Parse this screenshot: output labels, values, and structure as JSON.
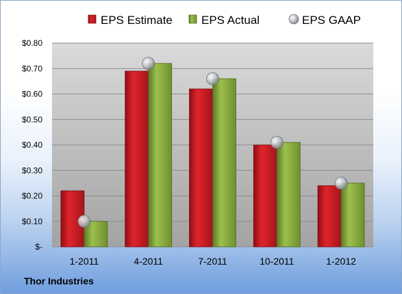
{
  "company": "Thor Industries",
  "colors": {
    "estimate": "#c0181f",
    "actual": "#86a93e",
    "gaap": "#b9bcc2",
    "plot_top": "#d9d9d9",
    "plot_bottom": "#a6a6a6"
  },
  "chart_data": {
    "type": "bar",
    "categories": [
      "1-2011",
      "4-2011",
      "7-2011",
      "10-2011",
      "1-2012"
    ],
    "series": [
      {
        "name": "EPS Estimate",
        "kind": "bar",
        "values": [
          0.22,
          0.69,
          0.62,
          0.4,
          0.24
        ]
      },
      {
        "name": "EPS Actual",
        "kind": "bar",
        "values": [
          0.1,
          0.72,
          0.66,
          0.41,
          0.25
        ]
      },
      {
        "name": "EPS GAAP",
        "kind": "marker",
        "values": [
          0.1,
          0.72,
          0.66,
          0.41,
          0.25
        ]
      }
    ],
    "ylim": [
      0,
      0.8
    ],
    "yticks": [
      0,
      0.1,
      0.2,
      0.3,
      0.4,
      0.5,
      0.6,
      0.7,
      0.8
    ],
    "ytick_labels": [
      "$-",
      "$0.10",
      "$0.20",
      "$0.30",
      "$0.40",
      "$0.50",
      "$0.60",
      "$0.70",
      "$0.80"
    ],
    "grid": true,
    "legend_position": "top"
  }
}
